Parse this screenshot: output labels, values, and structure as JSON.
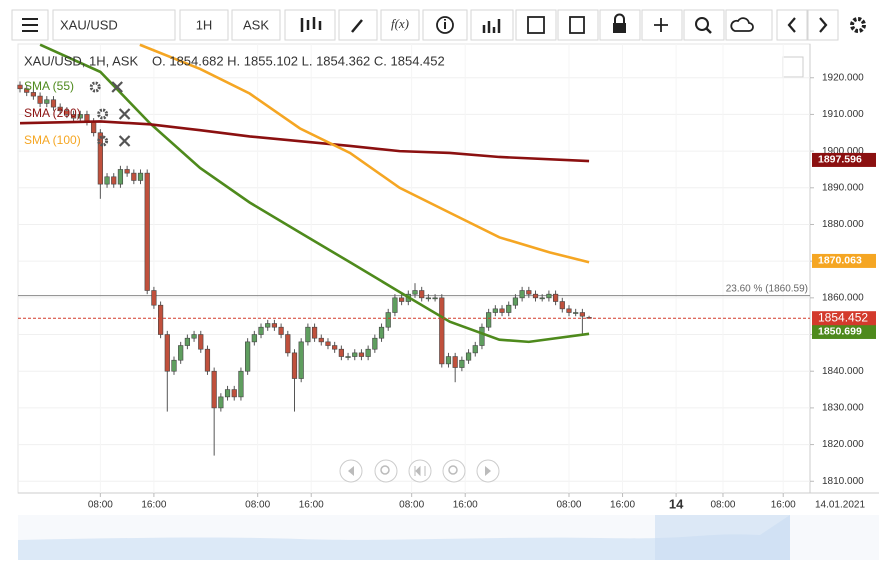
{
  "toolbar": {
    "symbol": "XAU/USD",
    "interval": "1H",
    "side": "ASK",
    "fx": "f(x)"
  },
  "chart_data": {
    "type": "candlestick",
    "title": "XAU/USD, 1H, ASK",
    "ohlc_text": "O. 1854.682 H. 1855.102 L. 1854.362 C. 1854.452",
    "up_color": "#5f9e5f",
    "down_color": "#c0503c",
    "open": [
      1918,
      1917,
      1916,
      1915,
      1913,
      1914,
      1912,
      1911,
      1910,
      1909,
      1910,
      1908,
      1905,
      1891,
      1893,
      1891,
      1895,
      1894,
      1892,
      1894,
      1862,
      1858,
      1850,
      1840,
      1843,
      1847,
      1849,
      1850,
      1846,
      1840,
      1830,
      1833,
      1835,
      1833,
      1840,
      1848,
      1850,
      1852,
      1853,
      1852,
      1850,
      1845,
      1838,
      1848,
      1852,
      1849,
      1848,
      1847,
      1846,
      1844,
      1844,
      1845,
      1844,
      1846,
      1849,
      1852,
      1856,
      1860,
      1859,
      1861,
      1862,
      1860,
      1860,
      1860,
      1842,
      1844,
      1841,
      1843,
      1845,
      1847,
      1852,
      1856,
      1857,
      1856,
      1858,
      1860,
      1862,
      1861,
      1860,
      1860,
      1861,
      1859,
      1857,
      1856,
      1856,
      1854.682
    ],
    "high": [
      1919,
      1918,
      1917,
      1916,
      1915,
      1915,
      1913,
      1912,
      1911,
      1911,
      1911,
      1909,
      1906,
      1894,
      1894,
      1896,
      1896,
      1895,
      1895,
      1895,
      1863,
      1859,
      1851,
      1844,
      1848,
      1850,
      1851,
      1851,
      1847,
      1841,
      1834,
      1836,
      1836,
      1841,
      1849,
      1851,
      1853,
      1854,
      1854,
      1853,
      1851,
      1846,
      1849,
      1853,
      1853,
      1850,
      1849,
      1848,
      1847,
      1845,
      1846,
      1846,
      1847,
      1850,
      1853,
      1857,
      1861,
      1861,
      1862,
      1864,
      1863,
      1861,
      1861,
      1861,
      1845,
      1845,
      1844,
      1846,
      1848,
      1853,
      1857,
      1858,
      1858,
      1859,
      1861,
      1863,
      1863,
      1862,
      1861,
      1862,
      1862,
      1860,
      1858,
      1857,
      1857,
      1855.102
    ],
    "low": [
      1916,
      1915,
      1914,
      1912,
      1912,
      1911,
      1910,
      1909,
      1908,
      1908,
      1907,
      1904,
      1887,
      1890,
      1890,
      1890,
      1893,
      1891,
      1891,
      1861,
      1857,
      1849,
      1829,
      1839,
      1842,
      1846,
      1848,
      1845,
      1839,
      1817,
      1829,
      1832,
      1832,
      1832,
      1839,
      1847,
      1849,
      1851,
      1851,
      1849,
      1844,
      1829,
      1837,
      1847,
      1848,
      1847,
      1846,
      1845,
      1843,
      1843,
      1843,
      1843,
      1843,
      1845,
      1848,
      1851,
      1855,
      1858,
      1858,
      1860,
      1859,
      1859,
      1859,
      1841,
      1841,
      1837,
      1840,
      1842,
      1844,
      1846,
      1851,
      1855,
      1855,
      1855,
      1857,
      1859,
      1860,
      1859,
      1859,
      1859,
      1858,
      1856,
      1855,
      1855,
      1850,
      1854.362
    ],
    "close": [
      1917,
      1916,
      1915,
      1913,
      1914,
      1912,
      1911,
      1910,
      1909,
      1910,
      1908,
      1905,
      1891,
      1893,
      1891,
      1895,
      1894,
      1892,
      1894,
      1862,
      1858,
      1850,
      1840,
      1843,
      1847,
      1849,
      1850,
      1846,
      1840,
      1830,
      1833,
      1835,
      1833,
      1840,
      1848,
      1850,
      1852,
      1853,
      1852,
      1850,
      1845,
      1838,
      1848,
      1852,
      1849,
      1848,
      1847,
      1846,
      1844,
      1844,
      1845,
      1844,
      1846,
      1849,
      1852,
      1856,
      1860,
      1859,
      1861,
      1862,
      1860,
      1860,
      1860,
      1842,
      1844,
      1841,
      1843,
      1845,
      1847,
      1852,
      1856,
      1857,
      1856,
      1858,
      1860,
      1862,
      1861,
      1860,
      1860,
      1861,
      1859,
      1857,
      1856,
      1856,
      1855,
      1854.452
    ],
    "series": [
      {
        "name": "SMA (55)",
        "color": "#4e8a1c",
        "x": [
          3,
          12,
          19.4,
          26.9,
          34.3,
          41.8,
          49.3,
          56.7,
          64.2,
          71.6,
          76,
          85
        ],
        "values": [
          1929,
          1921.6,
          1907.6,
          1895.4,
          1886,
          1877.8,
          1869.7,
          1861.6,
          1853.5,
          1848.6,
          1848,
          1850.2
        ],
        "last_value": 1850.699
      },
      {
        "name": "SMA (200)",
        "color": "#8b1010",
        "x": [
          0,
          12,
          19.4,
          26.9,
          34.3,
          41.8,
          49.3,
          56.7,
          64.2,
          71.6,
          85
        ],
        "values": [
          1907.6,
          1908.1,
          1907.3,
          1905.7,
          1904,
          1902.7,
          1901.4,
          1900,
          1899.5,
          1898.4,
          1897.3
        ],
        "last_value": 1897.596
      },
      {
        "name": "SMA (100)",
        "color": "#f5a623",
        "x": [
          17.9,
          26.9,
          34.3,
          41.8,
          49.3,
          56.7,
          64.2,
          71.6,
          79.1,
          85
        ],
        "values": [
          1929,
          1922.4,
          1915.7,
          1906.2,
          1899.5,
          1890,
          1883.2,
          1876.5,
          1872.4,
          1869.7
        ],
        "last_value": 1870.063
      }
    ],
    "fib_level": {
      "label": "23.60 % (1860.59)",
      "value": 1860.59
    },
    "last_price_color": "#d33a2c",
    "xlim": [
      -0.3,
      118
    ],
    "ylim": [
      1806.8,
      1929.2
    ],
    "yticks": [
      {
        "value": 1810,
        "label": "1810.000"
      },
      {
        "value": 1820,
        "label": "1820.000"
      },
      {
        "value": 1830,
        "label": "1830.000"
      },
      {
        "value": 1840,
        "label": "1840.000"
      },
      {
        "value": 1850,
        "label": "1850.000"
      },
      {
        "value": 1860,
        "label": "1860.000"
      },
      {
        "value": 1870,
        "label": "1870.000"
      },
      {
        "value": 1880,
        "label": "1880.000"
      },
      {
        "value": 1890,
        "label": "1890.000"
      },
      {
        "value": 1900,
        "label": "1900.000"
      },
      {
        "value": 1910,
        "label": "1910.000"
      },
      {
        "value": 1920,
        "label": "1920.000"
      }
    ],
    "xticks": [
      {
        "value": 12,
        "label": "08:00"
      },
      {
        "value": 20,
        "label": "16:00"
      },
      {
        "value": 35.5,
        "label": "08:00"
      },
      {
        "value": 43.5,
        "label": "16:00"
      },
      {
        "value": 58.5,
        "label": "08:00"
      },
      {
        "value": 66.5,
        "label": "16:00"
      },
      {
        "value": 82,
        "label": "08:00"
      },
      {
        "value": 90,
        "label": "16:00"
      },
      {
        "value": 98,
        "label": "14"
      },
      {
        "value": 105,
        "label": "08:00"
      },
      {
        "value": 114,
        "label": "16:00"
      }
    ],
    "date_label": "14.01.2021",
    "grid": true
  }
}
